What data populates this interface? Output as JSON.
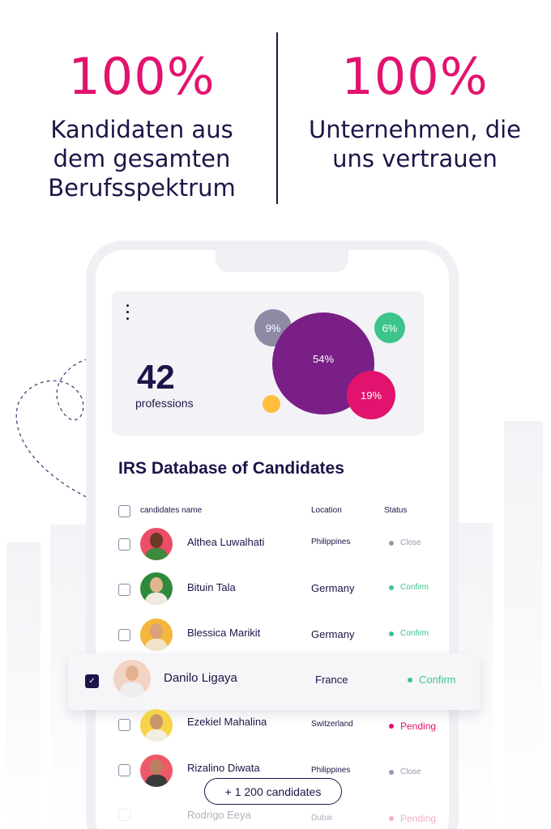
{
  "stats": [
    {
      "value": "100%",
      "label_lines": [
        "Kandidaten aus",
        "dem gesamten",
        "Berufsspektrum"
      ]
    },
    {
      "value": "100%",
      "label_lines": [
        "Unternehmen, die",
        "uns vertrauen"
      ]
    }
  ],
  "summary_card": {
    "count": "42",
    "count_label": "professions",
    "bubbles": [
      {
        "label": "9%",
        "color": "#8e8aa6"
      },
      {
        "label": "54%",
        "color": "#7a1f86"
      },
      {
        "label": "6%",
        "color": "#3cc58a"
      },
      {
        "label": "19%",
        "color": "#e2136e"
      },
      {
        "label": "",
        "color": "#ffbe3b"
      }
    ]
  },
  "table": {
    "title": "IRS Database of Candidates",
    "headers": {
      "name": "candidates name",
      "location": "Location",
      "status": "Status"
    },
    "rows": [
      {
        "name": "Althea Luwalhati",
        "location": "Philippines",
        "status": "Close",
        "status_color": "#9a96ad",
        "avatar_bg": "#ec4d67",
        "skin": "#6a3a24",
        "shirt": "#3c8a3a"
      },
      {
        "name": "Bituin Tala",
        "location": "Germany",
        "status": "Confirm",
        "status_color": "#3cc58a",
        "avatar_bg": "#2f8a3c",
        "skin": "#e0b48e",
        "shirt": "#f0e9df"
      },
      {
        "name": "Blessica Marikit",
        "location": "Germany",
        "status": "Confirm",
        "status_color": "#3cc58a",
        "avatar_bg": "#f5b73b",
        "skin": "#d9a27a",
        "shirt": "#f1e3c8"
      },
      {
        "name": "Danilo Ligaya",
        "location": "France",
        "status": "Confirm",
        "status_color": "#3cc58a",
        "avatar_bg": "#f2d4c4",
        "skin": "#e3b18f",
        "shirt": "#eeeeee"
      },
      {
        "name": "Ezekiel Mahalina",
        "location": "Switzerland",
        "status": "Pending",
        "status_color": "#e2136e",
        "avatar_bg": "#f6d447",
        "skin": "#c8946c",
        "shirt": "#f2eee3"
      },
      {
        "name": "Rizalino Diwata",
        "location": "Philippines",
        "status": "Close",
        "status_color": "#9a96ad",
        "avatar_bg": "#ef5868",
        "skin": "#b98060",
        "shirt": "#3a3a3a"
      },
      {
        "name": "Rodrigo Eeya",
        "location": "Dubai",
        "status": "Pending",
        "status_color": "#e2136e",
        "avatar_bg": "#ffffff",
        "skin": "#ffffff",
        "shirt": "#ffffff"
      }
    ],
    "more_button": "+ 1 200 candidates"
  }
}
